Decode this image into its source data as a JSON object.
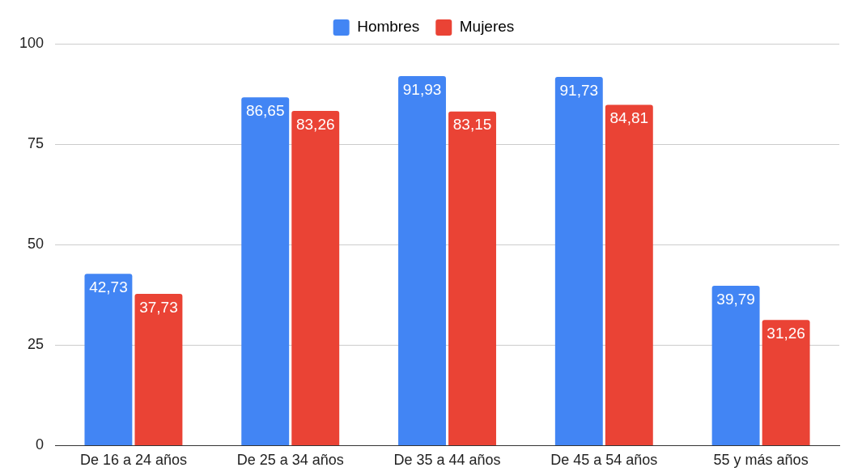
{
  "chart_data": {
    "type": "bar",
    "categories": [
      "De 16 a 24 años",
      "De 25 a 34 años",
      "De 35 a 44 años",
      "De 45 a 54 años",
      "55 y más años"
    ],
    "series": [
      {
        "name": "Hombres",
        "color": "#4285f4",
        "values": [
          42.73,
          86.65,
          91.93,
          91.73,
          39.79
        ],
        "value_labels": [
          "42,73",
          "86,65",
          "91,93",
          "91,73",
          "39,79"
        ]
      },
      {
        "name": "Mujeres",
        "color": "#ea4335",
        "values": [
          37.73,
          83.26,
          83.15,
          84.81,
          31.26
        ],
        "value_labels": [
          "37,73",
          "83,26",
          "83,15",
          "84,81",
          "31,26"
        ]
      }
    ],
    "ylim": [
      0,
      100
    ],
    "yticks": [
      0,
      25,
      50,
      75,
      100
    ],
    "grid": "y",
    "legend": "top"
  }
}
